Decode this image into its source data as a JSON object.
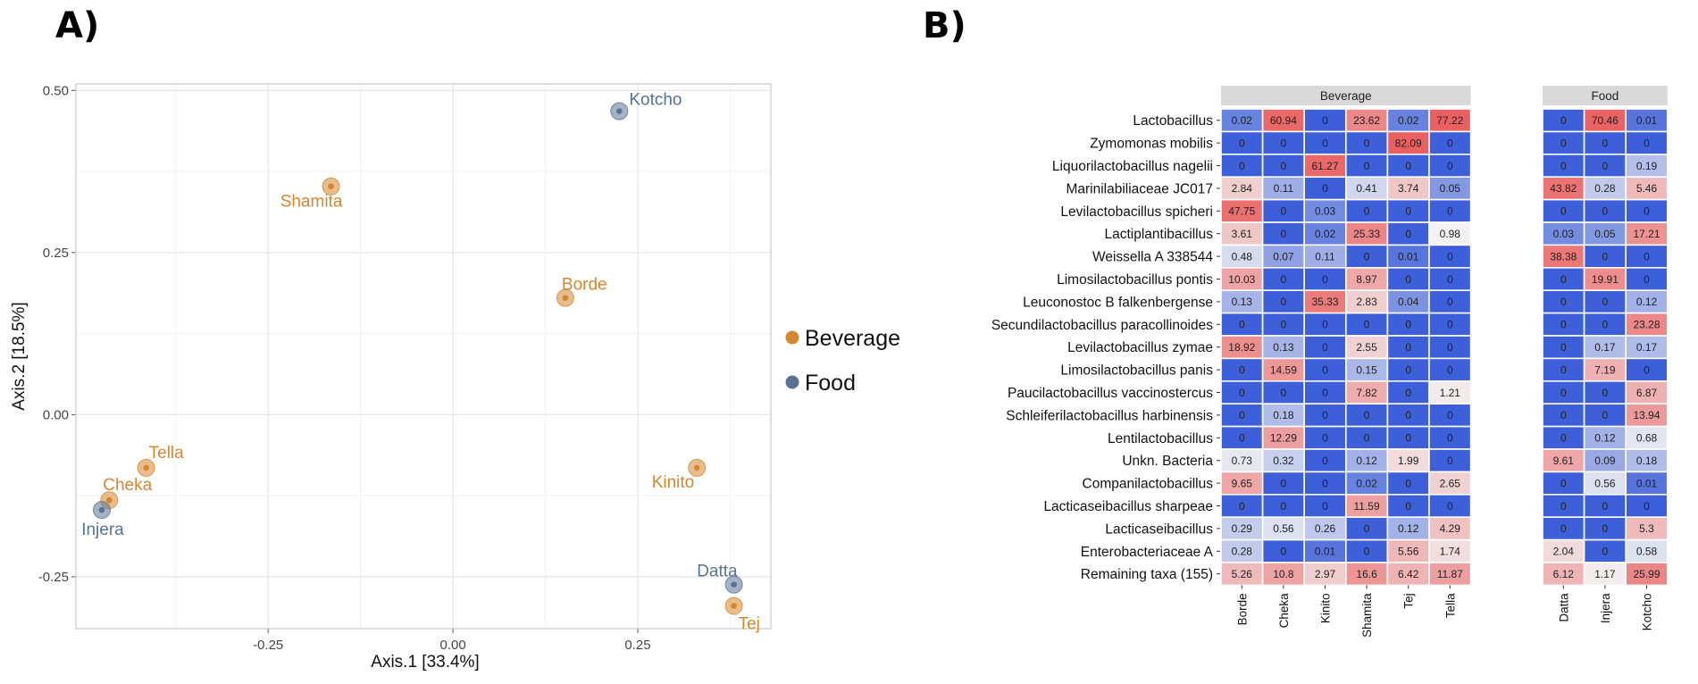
{
  "panels": {
    "a_label": "A)",
    "b_label": "B)"
  },
  "colors": {
    "beverage": "#d6862e",
    "food": "#5a7394",
    "heat_low": "#3d5fd9",
    "heat_mid": "#f2f2f2",
    "heat_high": "#ea5f5f",
    "grid": "#e5e5e5",
    "strip": "#d9d9d9"
  },
  "chart_data": [
    {
      "type": "scatter",
      "xlabel": "Axis.1   [33.4%]",
      "ylabel": "Axis.2   [18.5%]",
      "xlim": [
        -0.51,
        0.43
      ],
      "ylim": [
        -0.33,
        0.51
      ],
      "xticks": [
        -0.25,
        0.0,
        0.25
      ],
      "xtick_labels": [
        "-0.25",
        "0.00",
        "0.25"
      ],
      "yticks": [
        -0.25,
        0.0,
        0.25,
        0.5
      ],
      "ytick_labels": [
        "-0.25",
        "0.00",
        "0.25",
        "0.50"
      ],
      "legend": {
        "placement": "right",
        "entries": [
          {
            "name": "Beverage",
            "group": "beverage"
          },
          {
            "name": "Food",
            "group": "food"
          }
        ]
      },
      "points": [
        {
          "name": "Kotcho",
          "x": 0.225,
          "y": 0.468,
          "group": "food",
          "label_pos": "above-right"
        },
        {
          "name": "Shamita",
          "x": -0.165,
          "y": 0.352,
          "group": "beverage",
          "label_pos": "below"
        },
        {
          "name": "Borde",
          "x": 0.152,
          "y": 0.18,
          "group": "beverage",
          "label_pos": "above-right"
        },
        {
          "name": "Tella",
          "x": -0.415,
          "y": -0.082,
          "group": "beverage",
          "label_pos": "above-right"
        },
        {
          "name": "Cheka",
          "x": -0.465,
          "y": -0.132,
          "group": "beverage",
          "label_pos": "above-right"
        },
        {
          "name": "Injera",
          "x": -0.475,
          "y": -0.147,
          "group": "food",
          "label_pos": "below"
        },
        {
          "name": "Kinito",
          "x": 0.33,
          "y": -0.082,
          "group": "beverage",
          "label_pos": "below-left"
        },
        {
          "name": "Datta",
          "x": 0.38,
          "y": -0.262,
          "group": "food",
          "label_pos": "above-left"
        },
        {
          "name": "Tej",
          "x": 0.38,
          "y": -0.295,
          "group": "beverage",
          "label_pos": "below-right"
        }
      ]
    },
    {
      "type": "heatmap",
      "groups": [
        {
          "name": "Beverage",
          "columns": [
            "Borde",
            "Cheka",
            "Kinito",
            "Shamita",
            "Tej",
            "Tella"
          ]
        },
        {
          "name": "Food",
          "columns": [
            "Datta",
            "Injera",
            "Kotcho"
          ]
        }
      ],
      "rows": [
        "Lactobacillus",
        "Zymomonas mobilis",
        "Liquorilactobacillus nagelii",
        "Marinilabiliaceae JC017",
        "Levilactobacillus spicheri",
        "Lactiplantibacillus",
        "Weissella A 338544",
        "Limosilactobacillus pontis",
        "Leuconostoc B falkenbergense",
        "Secundilactobacillus paracollinoides",
        "Levilactobacillus zymae",
        "Limosilactobacillus panis",
        "Paucilactobacillus vaccinostercus",
        "Schleiferilactobacillus harbinensis",
        "Lentilactobacillus",
        "Unkn. Bacteria",
        "Companilactobacillus",
        "Lacticaseibacillus sharpeae",
        "Lacticaseibacillus",
        "Enterobacteriaceae A",
        "Remaining taxa (155)"
      ],
      "values": [
        [
          "0.02",
          "60.94",
          "0",
          "23.62",
          "0.02",
          "77.22",
          "0",
          "70.46",
          "0.01"
        ],
        [
          "0",
          "0",
          "0",
          "0",
          "82.09",
          "0",
          "0",
          "0",
          "0"
        ],
        [
          "0",
          "0",
          "61.27",
          "0",
          "0",
          "0",
          "0",
          "0",
          "0.19"
        ],
        [
          "2.84",
          "0.11",
          "0",
          "0.41",
          "3.74",
          "0.05",
          "43.82",
          "0.28",
          "5.46"
        ],
        [
          "47.75",
          "0",
          "0.03",
          "0",
          "0",
          "0",
          "0",
          "0",
          "0"
        ],
        [
          "3.61",
          "0",
          "0.02",
          "25.33",
          "0",
          "0.98",
          "0.03",
          "0.05",
          "17.21"
        ],
        [
          "0.48",
          "0.07",
          "0.11",
          "0",
          "0.01",
          "0",
          "38.38",
          "0",
          "0"
        ],
        [
          "10.03",
          "0",
          "0",
          "8.97",
          "0",
          "0",
          "0",
          "19.91",
          "0"
        ],
        [
          "0.13",
          "0",
          "35.33",
          "2.83",
          "0.04",
          "0",
          "0",
          "0",
          "0.12"
        ],
        [
          "0",
          "0",
          "0",
          "0",
          "0",
          "0",
          "0",
          "0",
          "23.28"
        ],
        [
          "18.92",
          "0.13",
          "0",
          "2.55",
          "0",
          "0",
          "0",
          "0.17",
          "0.17"
        ],
        [
          "0",
          "14.59",
          "0",
          "0.15",
          "0",
          "0",
          "0",
          "7.19",
          "0"
        ],
        [
          "0",
          "0",
          "0",
          "7.82",
          "0",
          "1.21",
          "0",
          "0",
          "6.87"
        ],
        [
          "0",
          "0.18",
          "0",
          "0",
          "0",
          "0",
          "0",
          "0",
          "13.94"
        ],
        [
          "0",
          "12.29",
          "0",
          "0",
          "0",
          "0",
          "0",
          "0.12",
          "0.68"
        ],
        [
          "0.73",
          "0.32",
          "0",
          "0.12",
          "1.99",
          "0",
          "9.61",
          "0.09",
          "0.18"
        ],
        [
          "9.65",
          "0",
          "0",
          "0.02",
          "0",
          "2.65",
          "0",
          "0.56",
          "0.01"
        ],
        [
          "0",
          "0",
          "0",
          "11.59",
          "0",
          "0",
          "0",
          "0",
          "0"
        ],
        [
          "0.29",
          "0.56",
          "0.26",
          "0",
          "0.12",
          "4.29",
          "0",
          "0",
          "5.3"
        ],
        [
          "0.28",
          "0",
          "0.01",
          "0",
          "5.56",
          "1.74",
          "2.04",
          "0",
          "0.58"
        ],
        [
          "5.26",
          "10.8",
          "2.97",
          "16.6",
          "6.42",
          "11.87",
          "6.12",
          "1.17",
          "25.99"
        ]
      ]
    }
  ]
}
